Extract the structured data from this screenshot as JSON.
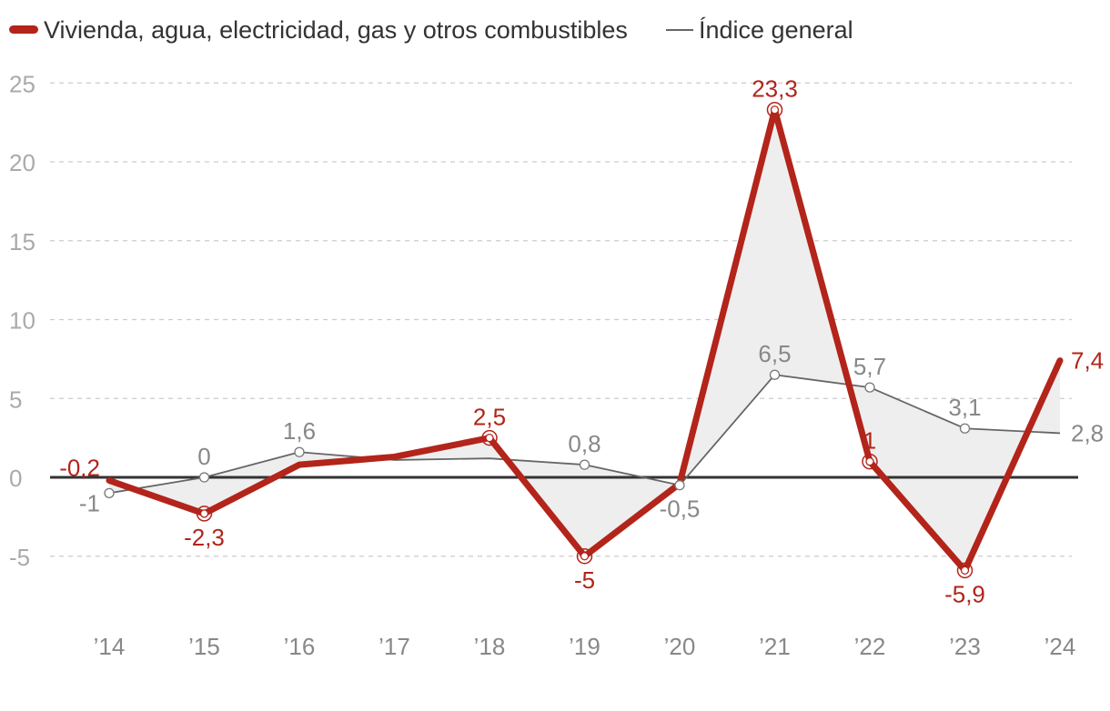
{
  "chart_data": {
    "type": "line",
    "categories": [
      "’14",
      "’15",
      "’16",
      "’17",
      "’18",
      "’19",
      "’20",
      "’21",
      "’22",
      "’23",
      "’24"
    ],
    "series": [
      {
        "name": "Vivienda, agua, electricidad, gas y otros combustibles",
        "color": "#b3241a",
        "values": [
          -0.2,
          -2.3,
          0.8,
          1.3,
          2.5,
          -5.0,
          -0.4,
          23.3,
          1.0,
          -5.9,
          7.4
        ],
        "labels": [
          "-0,2",
          "-2,3",
          "",
          "",
          "2,5",
          "-5",
          "",
          "23,3",
          "1",
          "-5,9",
          "7,4"
        ]
      },
      {
        "name": "Índice general",
        "color": "#666666",
        "values": [
          -1.0,
          0.0,
          1.6,
          1.1,
          1.2,
          0.8,
          -0.5,
          6.5,
          5.7,
          3.1,
          2.8
        ],
        "labels": [
          "-1",
          "0",
          "1,6",
          "",
          "",
          "0,8",
          "-0,5",
          "6,5",
          "5,7",
          "3,1",
          "2,8"
        ]
      }
    ],
    "ylim": [
      -9,
      25
    ],
    "yticks": [
      25,
      20,
      15,
      10,
      5,
      0,
      -5
    ],
    "ytick_labels": [
      "25",
      "20",
      "15",
      "10",
      "5",
      "0",
      "-5"
    ],
    "grid": true,
    "legend": "top-left"
  }
}
